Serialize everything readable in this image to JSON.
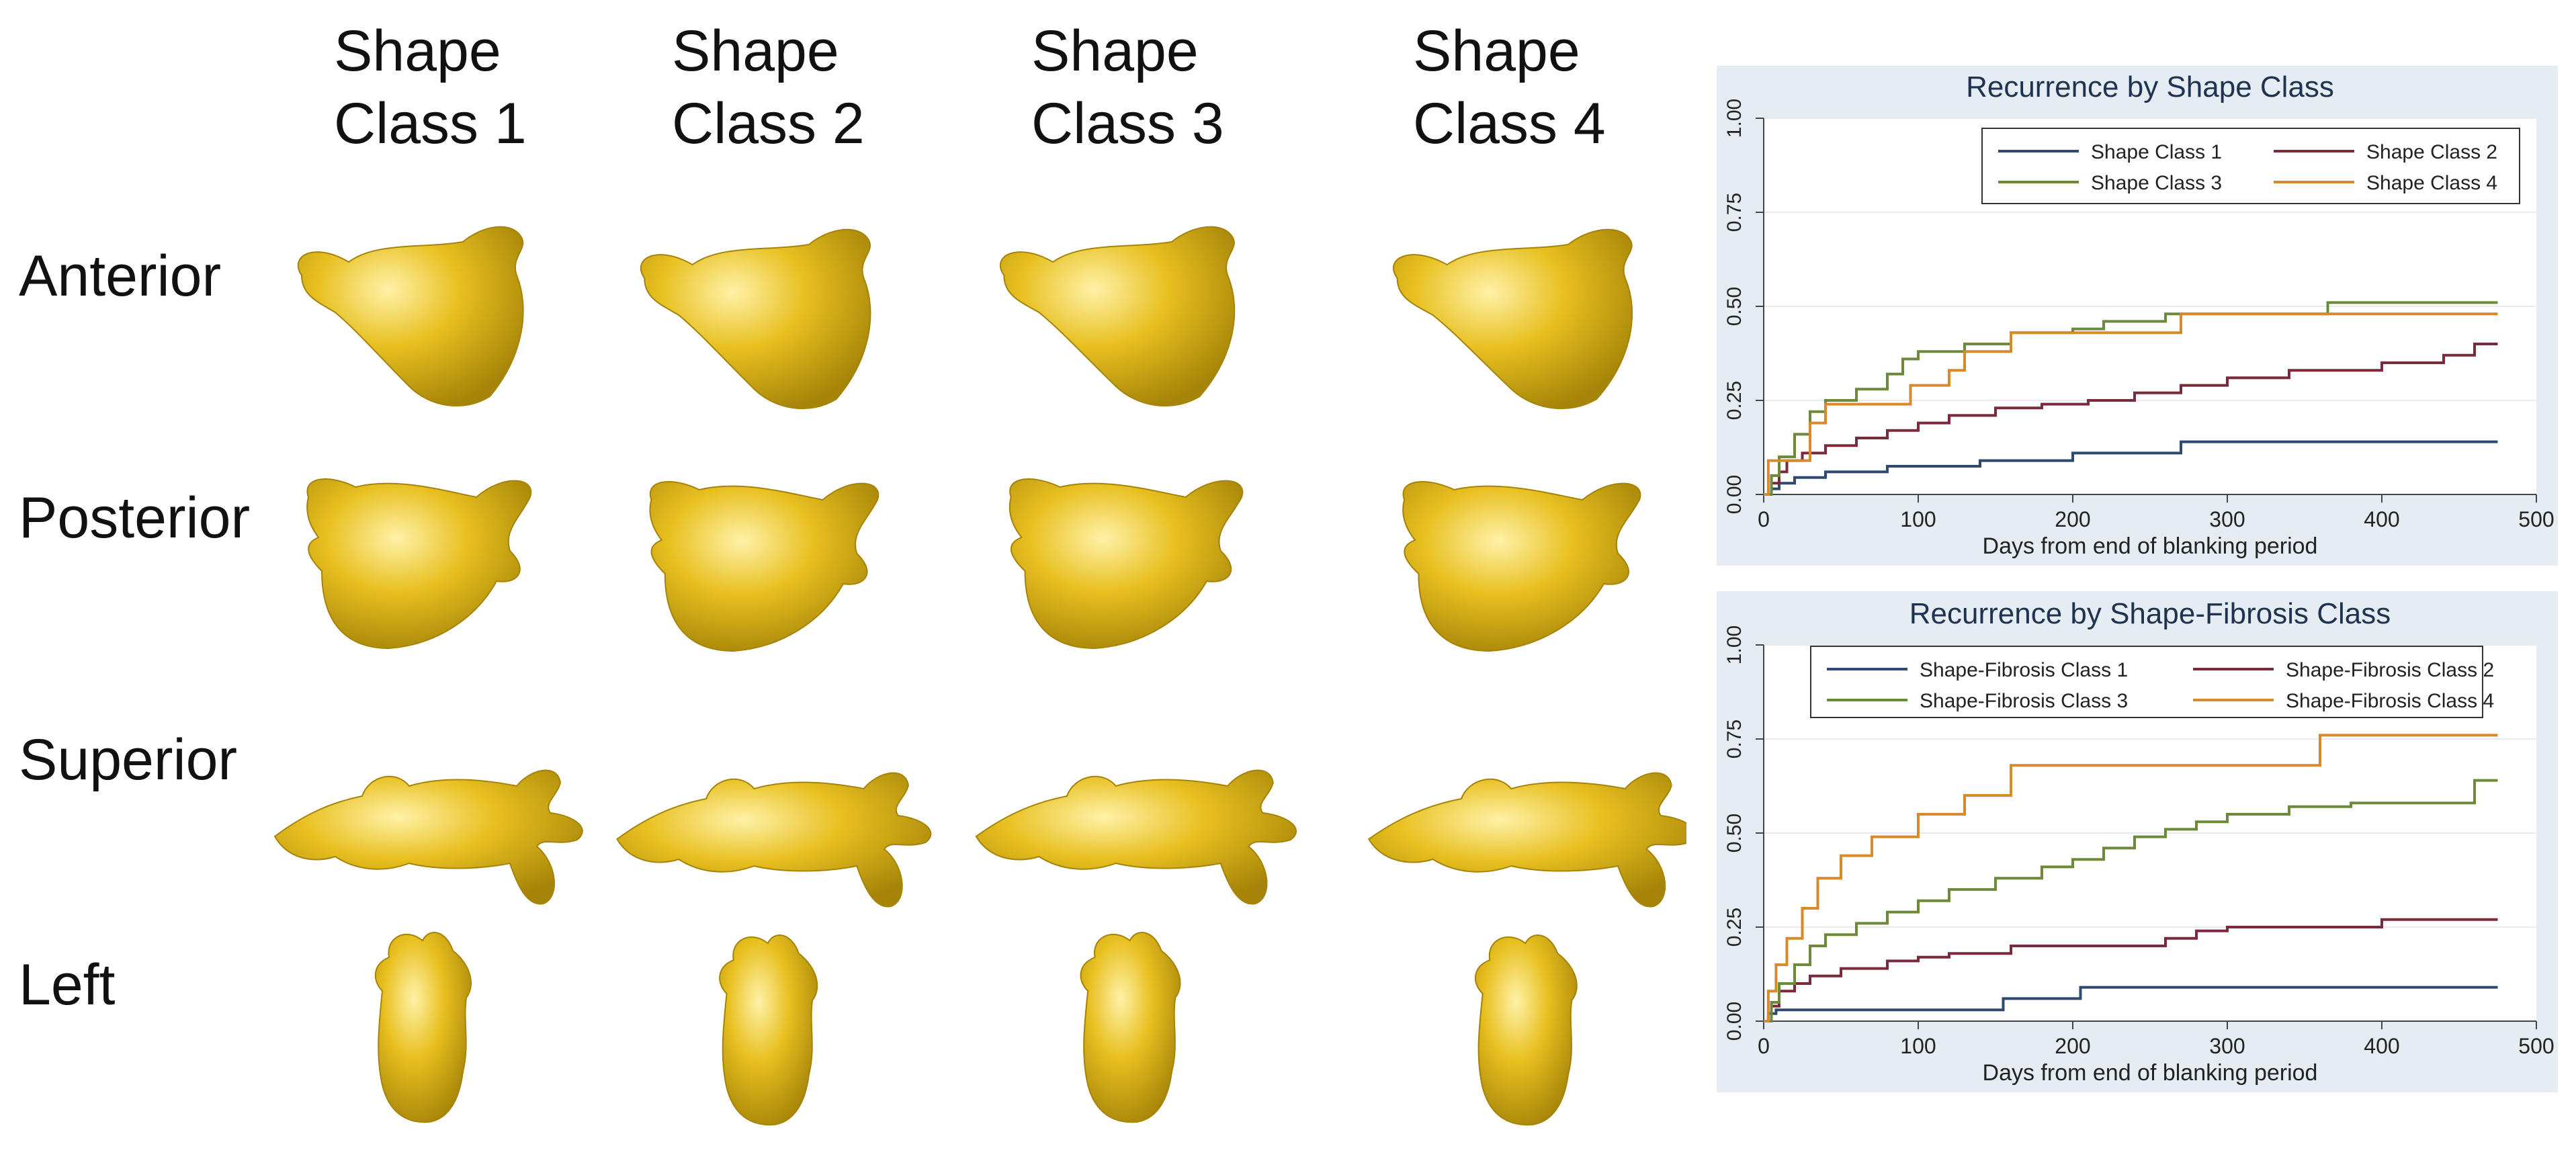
{
  "columns": [
    {
      "line1": "Shape",
      "line2": "Class 1"
    },
    {
      "line1": "Shape",
      "line2": "Class 2"
    },
    {
      "line1": "Shape",
      "line2": "Class 3"
    },
    {
      "line1": "Shape",
      "line2": "Class 4"
    }
  ],
  "rows": [
    "Anterior",
    "Posterior",
    "Superior",
    "Left"
  ],
  "colors": {
    "shape_fill": "#e8c020",
    "shape_edge": "#a68408",
    "class1": "#2e4a72",
    "class2": "#7a2a3a",
    "class3": "#6b8b3a",
    "class4": "#d88a2a",
    "panel_bg": "#e5ecf2",
    "plot_bg": "#ffffff"
  },
  "chart_data": [
    {
      "type": "line",
      "step": true,
      "title": "Recurrence by Shape Class",
      "xlabel": "Days from end of blanking period",
      "ylabel": "",
      "xlim": [
        0,
        500
      ],
      "ylim": [
        0,
        1
      ],
      "xticks": [
        "0",
        "100",
        "200",
        "300",
        "400",
        "500"
      ],
      "yticks": [
        "0.00",
        "0.25",
        "0.50",
        "0.75",
        "1.00"
      ],
      "grid": true,
      "legend_position": "top-right",
      "series": [
        {
          "name": "Shape Class 1",
          "color": "#2e4a72",
          "x": [
            0,
            5,
            10,
            20,
            40,
            80,
            140,
            200,
            270,
            475
          ],
          "y": [
            0,
            0.015,
            0.03,
            0.045,
            0.06,
            0.075,
            0.09,
            0.11,
            0.14,
            0.14
          ]
        },
        {
          "name": "Shape Class 2",
          "color": "#7a2a3a",
          "x": [
            0,
            5,
            10,
            15,
            25,
            40,
            60,
            80,
            100,
            120,
            150,
            180,
            210,
            240,
            270,
            300,
            340,
            400,
            440,
            460,
            475
          ],
          "y": [
            0,
            0.03,
            0.06,
            0.09,
            0.11,
            0.13,
            0.15,
            0.17,
            0.19,
            0.21,
            0.23,
            0.24,
            0.25,
            0.27,
            0.29,
            0.31,
            0.33,
            0.35,
            0.37,
            0.4,
            0.4
          ]
        },
        {
          "name": "Shape Class 3",
          "color": "#6b8b3a",
          "x": [
            0,
            5,
            10,
            20,
            30,
            40,
            60,
            80,
            90,
            100,
            130,
            160,
            200,
            220,
            260,
            270,
            365,
            475
          ],
          "y": [
            0,
            0.05,
            0.1,
            0.16,
            0.22,
            0.25,
            0.28,
            0.32,
            0.36,
            0.38,
            0.4,
            0.43,
            0.44,
            0.46,
            0.48,
            0.48,
            0.51,
            0.51
          ]
        },
        {
          "name": "Shape Class 4",
          "color": "#d88a2a",
          "x": [
            0,
            3,
            20,
            30,
            40,
            80,
            95,
            105,
            120,
            130,
            160,
            270,
            475
          ],
          "y": [
            0,
            0.09,
            0.09,
            0.19,
            0.24,
            0.24,
            0.29,
            0.29,
            0.33,
            0.38,
            0.43,
            0.48,
            0.48
          ]
        }
      ]
    },
    {
      "type": "line",
      "step": true,
      "title": "Recurrence by Shape-Fibrosis Class",
      "xlabel": "Days from end of blanking period",
      "ylabel": "",
      "xlim": [
        0,
        500
      ],
      "ylim": [
        0,
        1
      ],
      "xticks": [
        "0",
        "100",
        "200",
        "300",
        "400",
        "500"
      ],
      "yticks": [
        "0.00",
        "0.25",
        "0.50",
        "0.75",
        "1.00"
      ],
      "grid": true,
      "legend_position": "top-right",
      "series": [
        {
          "name": "Shape-Fibrosis Class 1",
          "color": "#2e4a72",
          "x": [
            0,
            3,
            8,
            155,
            205,
            475
          ],
          "y": [
            0,
            0.02,
            0.03,
            0.06,
            0.09,
            0.09
          ]
        },
        {
          "name": "Shape-Fibrosis Class 2",
          "color": "#7a2a3a",
          "x": [
            0,
            5,
            10,
            20,
            30,
            50,
            80,
            100,
            120,
            160,
            260,
            280,
            300,
            400,
            475
          ],
          "y": [
            0,
            0.04,
            0.08,
            0.1,
            0.12,
            0.14,
            0.16,
            0.17,
            0.18,
            0.2,
            0.22,
            0.24,
            0.25,
            0.27,
            0.27
          ]
        },
        {
          "name": "Shape-Fibrosis Class 3",
          "color": "#6b8b3a",
          "x": [
            0,
            5,
            10,
            20,
            30,
            40,
            60,
            80,
            100,
            120,
            150,
            180,
            200,
            220,
            240,
            260,
            280,
            300,
            340,
            380,
            460,
            475
          ],
          "y": [
            0,
            0.05,
            0.1,
            0.15,
            0.2,
            0.23,
            0.26,
            0.29,
            0.32,
            0.35,
            0.38,
            0.41,
            0.43,
            0.46,
            0.49,
            0.51,
            0.53,
            0.55,
            0.57,
            0.58,
            0.64,
            0.64
          ]
        },
        {
          "name": "Shape-Fibrosis Class 4",
          "color": "#d88a2a",
          "x": [
            0,
            3,
            8,
            15,
            25,
            35,
            50,
            70,
            100,
            130,
            160,
            360,
            475
          ],
          "y": [
            0,
            0.08,
            0.15,
            0.22,
            0.3,
            0.38,
            0.44,
            0.49,
            0.55,
            0.6,
            0.68,
            0.76,
            0.76
          ]
        }
      ]
    }
  ]
}
